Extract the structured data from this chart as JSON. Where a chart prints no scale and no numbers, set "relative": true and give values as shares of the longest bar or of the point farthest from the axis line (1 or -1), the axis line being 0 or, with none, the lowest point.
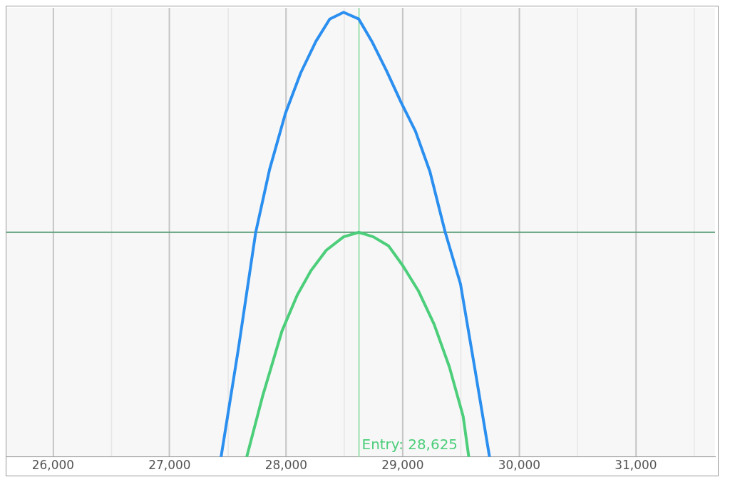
{
  "chart_data": {
    "type": "line",
    "relative": true,
    "xlim": [
      25600,
      31680
    ],
    "xticks": [
      {
        "value": 26000,
        "label": "26,000"
      },
      {
        "value": 26500,
        "label": null
      },
      {
        "value": 27000,
        "label": "27,000"
      },
      {
        "value": 27500,
        "label": null
      },
      {
        "value": 28000,
        "label": "28,000"
      },
      {
        "value": 28500,
        "label": null
      },
      {
        "value": 29000,
        "label": "29,000"
      },
      {
        "value": 29500,
        "label": null
      },
      {
        "value": 30000,
        "label": "30,000"
      },
      {
        "value": 30500,
        "label": null
      },
      {
        "value": 31000,
        "label": "31,000"
      },
      {
        "value": 31500,
        "label": null
      }
    ],
    "grid": "x",
    "legend": false,
    "marker": "none",
    "line_style": "solid",
    "series": [
      {
        "color": "#2b8ff0",
        "x": [
          27442,
          27590,
          27739,
          27858,
          27994,
          28125,
          28255,
          28374,
          28493,
          28623,
          28736,
          28861,
          28985,
          29110,
          29234,
          29365,
          29496,
          29620,
          29745
        ],
        "values": [
          -1,
          -0.52,
          0,
          0.28,
          0.53,
          0.71,
          0.85,
          0.95,
          0.98,
          0.95,
          0.85,
          0.72,
          0.58,
          0.45,
          0.27,
          0,
          -0.23,
          -0.61,
          -1
        ]
      },
      {
        "color": "#4cce7a",
        "x": [
          27662,
          27798,
          27964,
          28095,
          28214,
          28344,
          28493,
          28623,
          28748,
          28878,
          29003,
          29134,
          29270,
          29401,
          29519,
          29567
        ],
        "values": [
          -1,
          -0.73,
          -0.44,
          -0.28,
          -0.17,
          -0.08,
          -0.02,
          0,
          -0.02,
          -0.06,
          -0.15,
          -0.26,
          -0.41,
          -0.6,
          -0.82,
          -1
        ]
      }
    ],
    "ref_lines": [
      {
        "axis": "y",
        "value": 0,
        "color": "#5b9e78"
      },
      {
        "axis": "x",
        "value": 28625,
        "label": "Entry: 28,625",
        "color": "#9ee0b0"
      }
    ]
  }
}
